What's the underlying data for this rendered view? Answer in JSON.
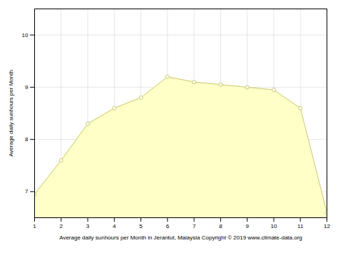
{
  "chart_data": {
    "type": "area",
    "xlabel": "Average daily sunhours per Month in Jerantut, Malaysia Copyright © 2019 www.climate-data.org",
    "ylabel": "Average daily sunhours per Month",
    "x": [
      1,
      2,
      3,
      4,
      5,
      6,
      7,
      8,
      9,
      10,
      11,
      12
    ],
    "series": [
      {
        "type": "area",
        "color": "#FFFFC8",
        "values": [
          6.95,
          7.6,
          8.3,
          8.6,
          8.8,
          9.2,
          9.1,
          9.05,
          9.0,
          8.95,
          8.6,
          6.6
        ]
      },
      {
        "type": "line",
        "color": "#C8C870",
        "marker": "circle",
        "values": [
          6.95,
          7.6,
          8.3,
          8.6,
          8.8,
          9.2,
          9.1,
          9.05,
          9.0,
          8.95,
          8.6,
          6.6
        ]
      }
    ],
    "xlim": [
      1,
      12
    ],
    "xticks": [
      1,
      2,
      3,
      4,
      5,
      6,
      7,
      8,
      9,
      10,
      11,
      12
    ],
    "ylim": [
      6.5,
      10.5
    ],
    "yticks": [
      7,
      8,
      9,
      10
    ],
    "grid": true
  }
}
